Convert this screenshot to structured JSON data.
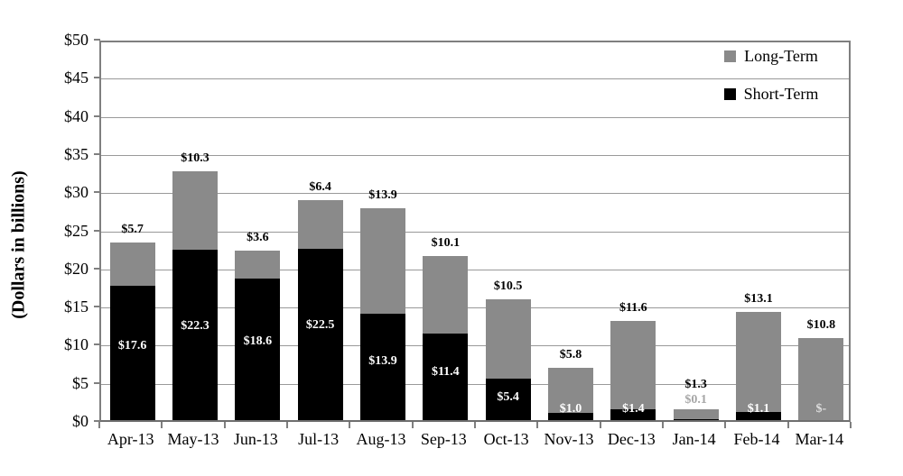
{
  "chart_data": {
    "type": "bar",
    "stacked": true,
    "ylabel": "(Dollars in billions)",
    "ylim": [
      0,
      50
    ],
    "ytick_step": 5,
    "ytick_labels": [
      "$0",
      "$5",
      "$10",
      "$15",
      "$20",
      "$25",
      "$30",
      "$35",
      "$40",
      "$45",
      "$50"
    ],
    "categories": [
      "Apr-13",
      "May-13",
      "Jun-13",
      "Jul-13",
      "Aug-13",
      "Sep-13",
      "Oct-13",
      "Nov-13",
      "Dec-13",
      "Jan-14",
      "Feb-14",
      "Mar-14"
    ],
    "series": [
      {
        "name": "Short-Term",
        "color": "#000000",
        "values": [
          17.6,
          22.3,
          18.6,
          22.5,
          13.9,
          11.4,
          5.4,
          1.0,
          1.4,
          0.1,
          1.1,
          0
        ],
        "labels": [
          "$17.6",
          "$22.3",
          "$18.6",
          "$22.5",
          "$13.9",
          "$11.4",
          "$5.4",
          "$1.0",
          "$1.4",
          "$0.1",
          "$1.1",
          "$-"
        ],
        "label_colors": [
          "#ffffff",
          "#ffffff",
          "#ffffff",
          "#ffffff",
          "#ffffff",
          "#ffffff",
          "#ffffff",
          "#ffffff",
          "#ffffff",
          "#a6a6a6",
          "#ffffff",
          "#dedede"
        ],
        "label_outside": [
          false,
          false,
          false,
          false,
          false,
          false,
          false,
          false,
          false,
          true,
          false,
          false
        ]
      },
      {
        "name": "Long-Term",
        "color": "#8a8a8a",
        "values": [
          5.7,
          10.3,
          3.6,
          6.4,
          13.9,
          10.1,
          10.5,
          5.8,
          11.6,
          1.3,
          13.1,
          10.8
        ],
        "labels": [
          "$5.7",
          "$10.3",
          "$3.6",
          "$6.4",
          "$13.9",
          "$10.1",
          "$10.5",
          "$5.8",
          "$11.6",
          "$1.3",
          "$13.1",
          "$10.8"
        ],
        "label_color": "#000000"
      }
    ],
    "legend": {
      "position": "top-right",
      "entries": [
        {
          "label": "Long-Term",
          "color": "#8a8a8a"
        },
        {
          "label": "Short-Term",
          "color": "#000000"
        }
      ]
    },
    "grid": true,
    "grid_color": "#999999",
    "border_color": "#7f7f7f"
  }
}
